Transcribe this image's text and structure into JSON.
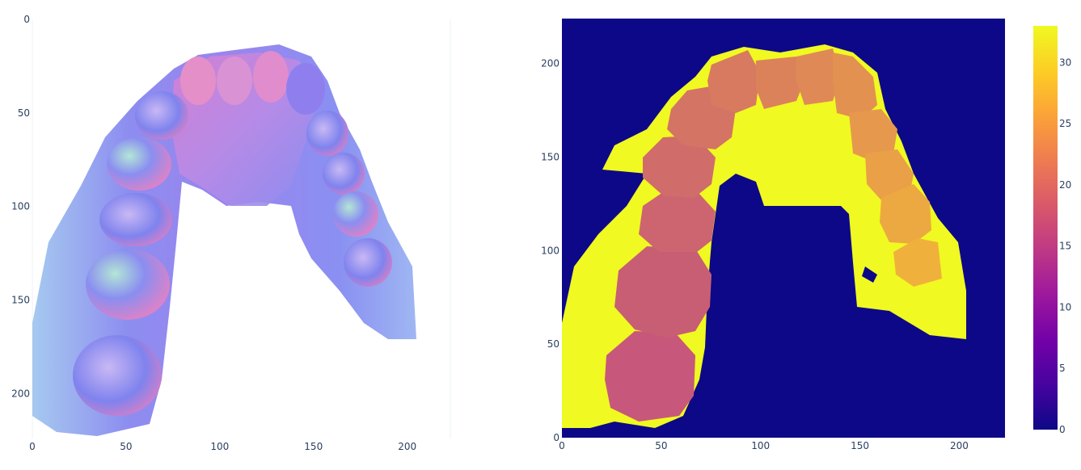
{
  "chart_data": [
    {
      "type": "image",
      "x": {
        "ticks": [
          0,
          50,
          100,
          150,
          200
        ],
        "range": [
          0,
          223
        ]
      },
      "y": {
        "ticks": [
          0,
          50,
          100,
          150,
          200
        ],
        "range": [
          0,
          224
        ],
        "reversed": true
      },
      "grid": true,
      "content": "dental arch normal-map render",
      "colors": {
        "skin": "#8c8df0",
        "pink": "#e67fc4",
        "green": "#9de3b8",
        "blue": "#6f7ef2"
      }
    },
    {
      "type": "heatmap",
      "x": {
        "ticks": [
          0,
          50,
          100,
          150,
          200
        ],
        "range": [
          0,
          223
        ]
      },
      "y": {
        "ticks": [
          0,
          50,
          100,
          150,
          200
        ],
        "range": [
          0,
          224
        ]
      },
      "colorbar": {
        "ticks": [
          0,
          5,
          10,
          15,
          20,
          25,
          30
        ],
        "range": [
          0,
          33
        ]
      },
      "colorscale": "plasma",
      "labels": [
        {
          "label": 0,
          "region": "background"
        },
        {
          "label": 33,
          "region": "gingiva"
        },
        {
          "label": 17,
          "tooth": 1
        },
        {
          "label": 18,
          "tooth": 2
        },
        {
          "label": 19,
          "tooth": 3
        },
        {
          "label": 20,
          "tooth": 4
        },
        {
          "label": 21,
          "tooth": 5
        },
        {
          "label": 22,
          "tooth": 6
        },
        {
          "label": 23,
          "tooth": 7
        },
        {
          "label": 24,
          "tooth": 8
        },
        {
          "label": 25,
          "tooth": 9
        },
        {
          "label": 26,
          "tooth": 10
        },
        {
          "label": 27,
          "tooth": 11
        },
        {
          "label": 28,
          "tooth": 12
        },
        {
          "label": 29,
          "tooth": 13
        },
        {
          "label": 30,
          "tooth": 14
        }
      ],
      "colors": {
        "background": "#0d0887",
        "gingiva": "#f0f921"
      }
    }
  ]
}
